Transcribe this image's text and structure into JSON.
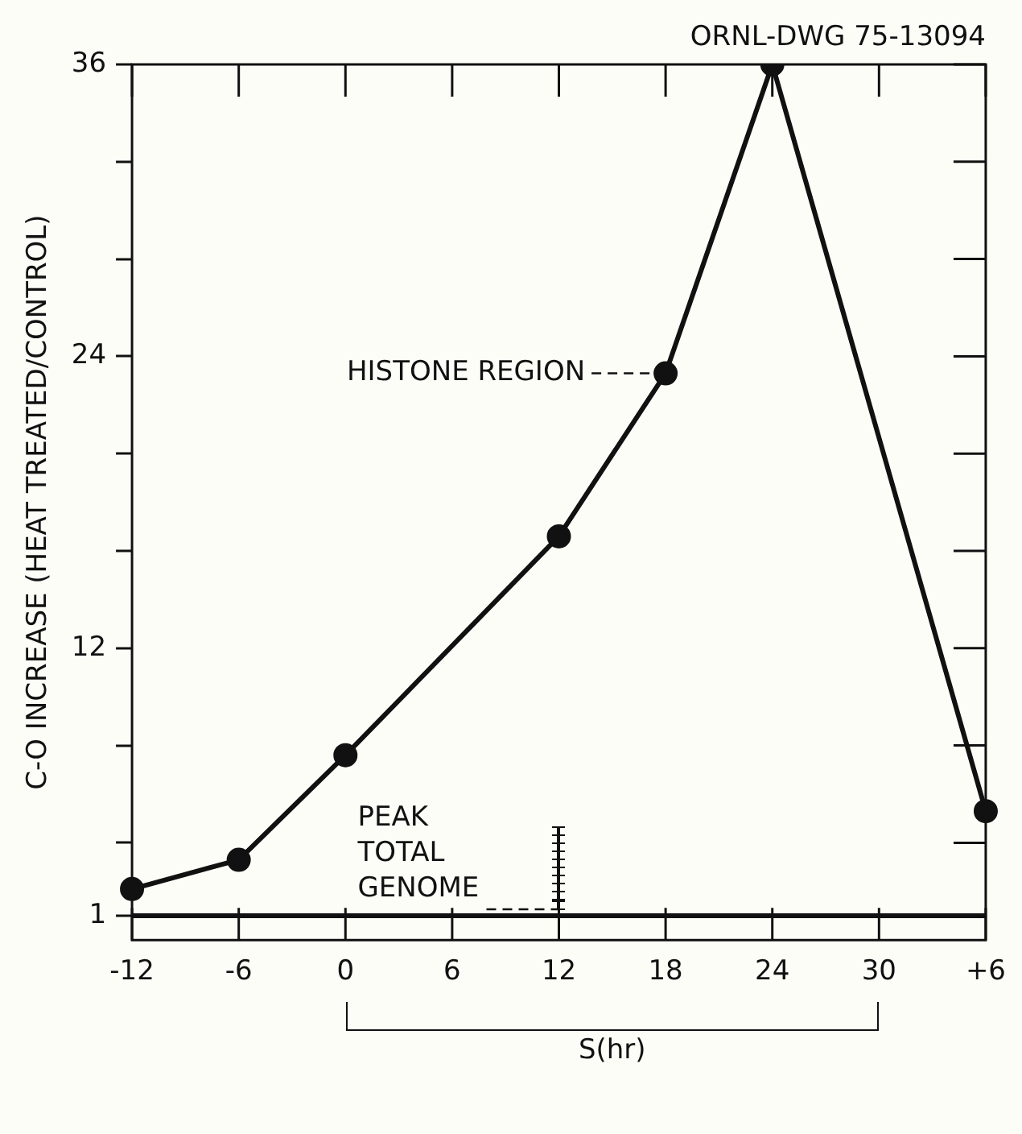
{
  "chart_data": {
    "type": "line",
    "categories": [
      "-12",
      "-6",
      "0",
      "6",
      "12",
      "18",
      "24",
      "30",
      "+6"
    ],
    "series": [
      {
        "color": "#111111",
        "values": [
          2.1,
          3.3,
          7.6,
          null,
          16.6,
          23.3,
          36,
          null,
          5.3
        ]
      }
    ],
    "ylabel": "C-O INCREASE (HEAT TREATED/CONTROL)",
    "xlabel": "S(hr)",
    "ylim": [
      0,
      36
    ],
    "yticks": [
      1,
      {
        "value": 4,
        "label": null
      },
      {
        "value": 8,
        "label": null
      },
      12,
      {
        "value": 16,
        "label": null
      },
      {
        "value": 20,
        "label": null
      },
      24,
      {
        "value": 28,
        "label": null
      },
      {
        "value": 32,
        "label": null
      },
      36
    ],
    "ref_lines": [
      {
        "axis": "y",
        "value": 1,
        "label": null
      }
    ],
    "annotations": [
      "ORNL-DWG 75-13094",
      {
        "text": "HISTONE REGION",
        "x": "18",
        "y": 23.3
      },
      {
        "text": "PEAK TOTAL GENOME",
        "x": "12",
        "y": 1
      }
    ],
    "marker": "circle",
    "line_style": "solid",
    "grid": false,
    "legend": false
  }
}
